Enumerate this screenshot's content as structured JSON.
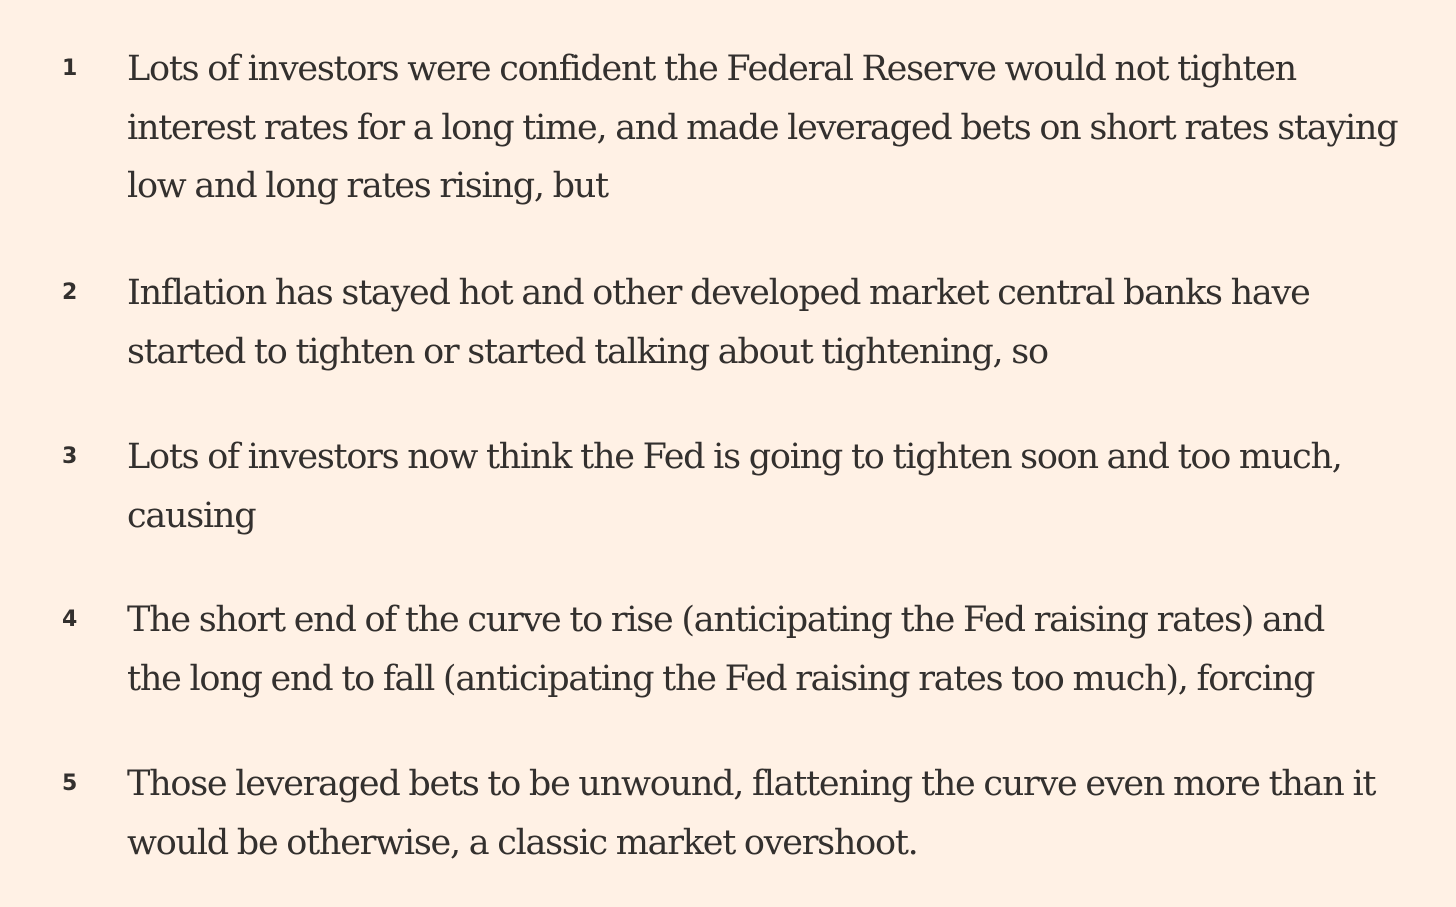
{
  "list": {
    "items": [
      {
        "number": "1",
        "lines": [
          "Lots of investors were confident the Federal Reserve would not tighten",
          "interest rates for a long time, and made leveraged bets on short rates staying",
          "low and long rates rising, but"
        ]
      },
      {
        "number": "2",
        "lines": [
          "Inflation has stayed hot and other developed market central banks have",
          "started to tighten or started talking about tightening, so"
        ]
      },
      {
        "number": "3",
        "lines": [
          "Lots of investors now think the Fed is going to tighten soon and too much,",
          "causing"
        ]
      },
      {
        "number": "4",
        "lines": [
          "The short end of the curve to rise (anticipating the Fed raising rates) and",
          "the long end to fall (anticipating the Fed raising rates too much), forcing"
        ]
      },
      {
        "number": "5",
        "lines": [
          "Those leveraged bets to be unwound, flattening the curve even more than it",
          "would be otherwise, a classic market overshoot."
        ]
      }
    ]
  }
}
